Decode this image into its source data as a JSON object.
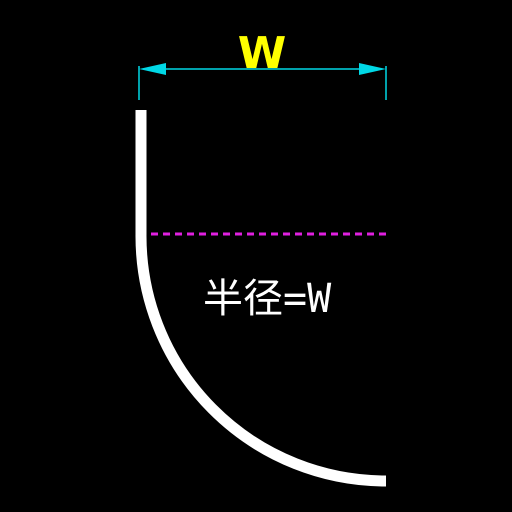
{
  "dimension": {
    "label": "W"
  },
  "annotation": {
    "text": "半径=W"
  },
  "colors": {
    "background": "#000000",
    "dimension_line": "#00d8e6",
    "dimension_label": "#ffff00",
    "curve": "#ffffff",
    "center_line": "#e020e0",
    "annotation_text": "#ffffff"
  }
}
